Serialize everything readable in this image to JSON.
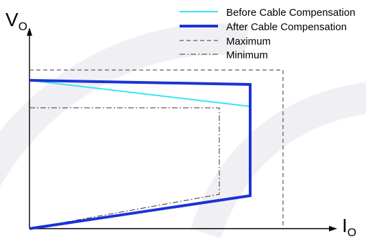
{
  "axes": {
    "y_label": "V",
    "y_subscript": "O",
    "x_label": "I",
    "x_subscript": "O"
  },
  "legend": [
    {
      "label": "Before Cable Compensation",
      "color": "#33e6f0",
      "style": "solid-thin"
    },
    {
      "label": "After Cable Compensation",
      "color": "#1a33d6",
      "style": "solid-thick"
    },
    {
      "label": "Maximum",
      "color": "#333333",
      "style": "dashed"
    },
    {
      "label": "Minimum",
      "color": "#333333",
      "style": "dash-dot"
    }
  ],
  "colors": {
    "axis": "#000000",
    "watermark": "#f0f0f4"
  }
}
